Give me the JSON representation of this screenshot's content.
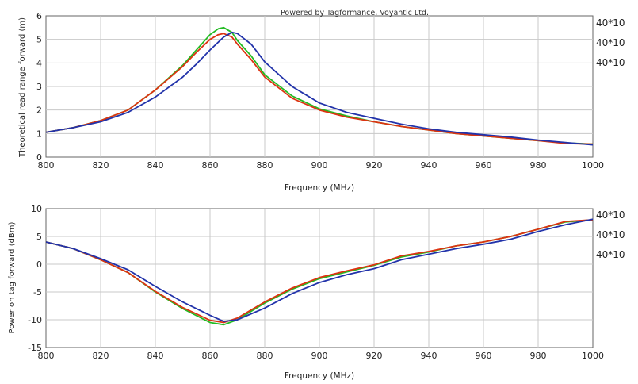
{
  "chart_data": [
    {
      "type": "line",
      "title": "Powered by Tagformance, Voyantic Ltd.",
      "xlabel": "Frequency (MHz)",
      "ylabel": "Theoretical read range forward (m)",
      "xlim": [
        800,
        1000
      ],
      "ylim": [
        0,
        6
      ],
      "xticks": [
        800,
        820,
        840,
        860,
        880,
        900,
        920,
        940,
        960,
        980,
        1000
      ],
      "yticks": [
        0,
        1,
        2,
        3,
        4,
        5,
        6
      ],
      "grid": true,
      "legend_position": "right",
      "legend": [
        "40*10",
        "40*10",
        "40*10"
      ],
      "series": [
        {
          "color": "#22bb22",
          "x": [
            800,
            810,
            820,
            830,
            840,
            850,
            855,
            860,
            863,
            865,
            868,
            870,
            875,
            880,
            890,
            900,
            910,
            920,
            930,
            940,
            950,
            960,
            970,
            980,
            990,
            1000
          ],
          "y": [
            1.05,
            1.25,
            1.55,
            2.0,
            2.85,
            3.9,
            4.55,
            5.2,
            5.45,
            5.5,
            5.3,
            4.95,
            4.3,
            3.5,
            2.6,
            2.05,
            1.75,
            1.5,
            1.3,
            1.15,
            1.0,
            0.9,
            0.8,
            0.7,
            0.6,
            0.55
          ]
        },
        {
          "color": "#dd3311",
          "x": [
            800,
            810,
            820,
            830,
            840,
            850,
            855,
            860,
            863,
            865,
            868,
            870,
            875,
            880,
            890,
            900,
            910,
            920,
            930,
            940,
            950,
            960,
            970,
            980,
            990,
            1000
          ],
          "y": [
            1.05,
            1.25,
            1.55,
            2.0,
            2.85,
            3.85,
            4.45,
            5.0,
            5.2,
            5.25,
            5.1,
            4.8,
            4.15,
            3.4,
            2.5,
            2.0,
            1.7,
            1.5,
            1.3,
            1.15,
            1.0,
            0.9,
            0.8,
            0.7,
            0.58,
            0.55
          ]
        },
        {
          "color": "#2233aa",
          "x": [
            800,
            810,
            820,
            830,
            840,
            850,
            855,
            860,
            865,
            868,
            870,
            875,
            880,
            890,
            900,
            910,
            920,
            930,
            940,
            950,
            960,
            970,
            980,
            990,
            1000
          ],
          "y": [
            1.05,
            1.25,
            1.5,
            1.9,
            2.55,
            3.4,
            3.95,
            4.55,
            5.1,
            5.3,
            5.25,
            4.8,
            4.05,
            3.0,
            2.3,
            1.9,
            1.65,
            1.4,
            1.2,
            1.05,
            0.95,
            0.85,
            0.72,
            0.62,
            0.52
          ]
        }
      ]
    },
    {
      "type": "line",
      "xlabel": "Frequency (MHz)",
      "ylabel": "Power on tag forward (dBm)",
      "xlim": [
        800,
        1000
      ],
      "ylim": [
        -15,
        10
      ],
      "xticks": [
        800,
        820,
        840,
        860,
        880,
        900,
        920,
        940,
        960,
        980,
        1000
      ],
      "yticks": [
        -15,
        -10,
        -5,
        0,
        5,
        10
      ],
      "grid": true,
      "legend_position": "right",
      "legend": [
        "40*10",
        "40*10",
        "40*10"
      ],
      "series": [
        {
          "color": "#22bb22",
          "x": [
            800,
            810,
            820,
            830,
            840,
            850,
            860,
            865,
            870,
            880,
            890,
            900,
            910,
            920,
            930,
            940,
            950,
            960,
            970,
            980,
            990,
            1000
          ],
          "y": [
            4.0,
            2.8,
            0.8,
            -1.5,
            -5.0,
            -8.0,
            -10.5,
            -10.9,
            -10.0,
            -7.0,
            -4.5,
            -2.6,
            -1.4,
            -0.2,
            1.3,
            2.2,
            3.3,
            4.0,
            5.0,
            6.3,
            7.6,
            8.0
          ]
        },
        {
          "color": "#dd3311",
          "x": [
            800,
            810,
            820,
            830,
            840,
            850,
            860,
            865,
            870,
            880,
            890,
            900,
            910,
            920,
            930,
            940,
            950,
            960,
            970,
            980,
            990,
            1000
          ],
          "y": [
            4.0,
            2.8,
            0.8,
            -1.5,
            -4.9,
            -7.8,
            -10.1,
            -10.5,
            -9.7,
            -6.8,
            -4.3,
            -2.4,
            -1.2,
            -0.1,
            1.5,
            2.3,
            3.3,
            4.0,
            5.0,
            6.3,
            7.7,
            8.0
          ]
        },
        {
          "color": "#2233aa",
          "x": [
            800,
            810,
            820,
            830,
            840,
            850,
            860,
            865,
            870,
            880,
            890,
            900,
            910,
            920,
            930,
            940,
            950,
            960,
            970,
            980,
            990,
            1000
          ],
          "y": [
            4.0,
            2.8,
            1.0,
            -1.0,
            -4.0,
            -6.8,
            -9.2,
            -10.3,
            -10.0,
            -7.9,
            -5.3,
            -3.3,
            -1.9,
            -0.8,
            0.8,
            1.8,
            2.8,
            3.6,
            4.5,
            5.9,
            7.1,
            8.1
          ]
        }
      ]
    }
  ]
}
